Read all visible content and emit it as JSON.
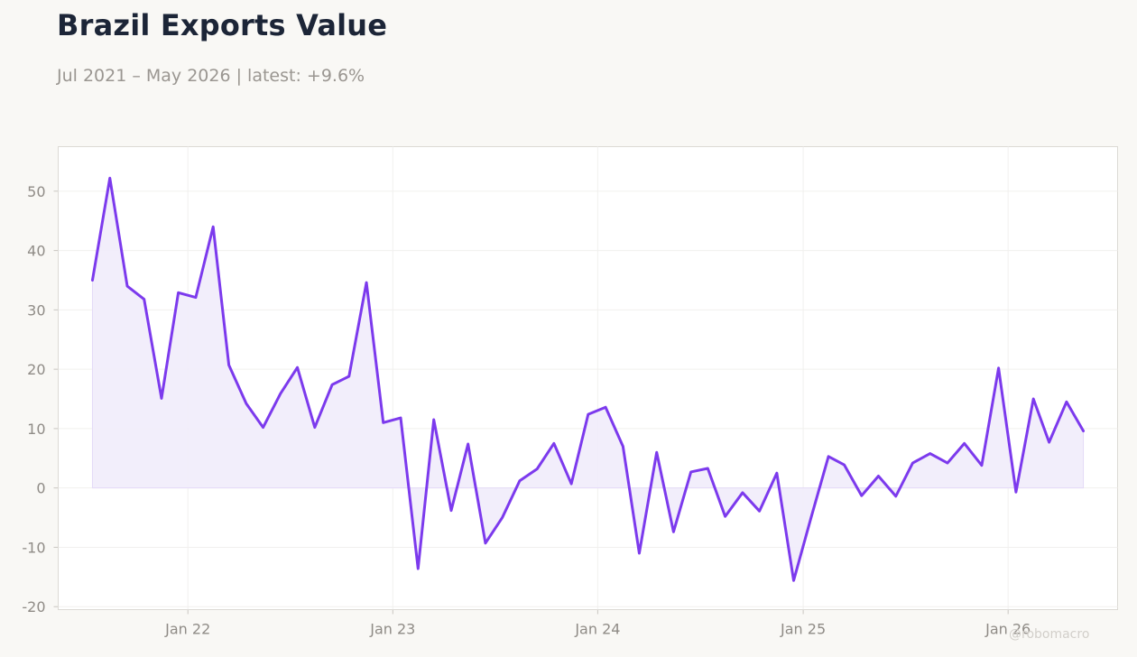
{
  "header": {
    "title": "Brazil Exports Value",
    "subtitle": "Jul 2021 – May 2026 | latest: +9.6%"
  },
  "watermark": "@robomacro",
  "colors": {
    "line": "#7c3aed",
    "fill": "#f1ecfb",
    "plot_background": "#ffffff",
    "grid": "#f1f0ee",
    "axis_border": "#dcdad5",
    "text_muted": "#8f8b86"
  },
  "chart_data": {
    "type": "area",
    "title": "Brazil Exports Value",
    "xlabel": "",
    "ylabel": "",
    "ylim": [
      -20.5,
      57.5
    ],
    "xlim": [
      "2021-05-15",
      "2026-07-15"
    ],
    "grid": true,
    "yticks": [
      -20,
      -10,
      0,
      10,
      20,
      30,
      40,
      50
    ],
    "xticks": [
      {
        "date": "2022-01-01",
        "label": "Jan 22"
      },
      {
        "date": "2023-01-01",
        "label": "Jan 23"
      },
      {
        "date": "2024-01-01",
        "label": "Jan 24"
      },
      {
        "date": "2025-01-01",
        "label": "Jan 25"
      },
      {
        "date": "2026-01-01",
        "label": "Jan 26"
      }
    ],
    "series": [
      {
        "x": [
          "2021-07",
          "2021-08",
          "2021-09",
          "2021-10",
          "2021-11",
          "2021-12",
          "2022-01",
          "2022-02",
          "2022-03",
          "2022-04",
          "2022-05",
          "2022-06",
          "2022-07",
          "2022-08",
          "2022-09",
          "2022-10",
          "2022-11",
          "2022-12",
          "2023-01",
          "2023-02",
          "2023-03",
          "2023-04",
          "2023-05",
          "2023-06",
          "2023-07",
          "2023-08",
          "2023-09",
          "2023-10",
          "2023-11",
          "2023-12",
          "2024-01",
          "2024-02",
          "2024-03",
          "2024-04",
          "2024-05",
          "2024-06",
          "2024-07",
          "2024-08",
          "2024-09",
          "2024-10",
          "2024-11",
          "2024-12",
          "2025-01",
          "2025-02",
          "2025-03",
          "2025-04",
          "2025-05",
          "2025-06",
          "2025-07",
          "2025-08",
          "2025-09",
          "2025-10",
          "2025-11",
          "2025-12",
          "2026-01",
          "2026-02",
          "2026-03",
          "2026-04",
          "2026-05"
        ],
        "values": [
          35.0,
          52.2,
          34.0,
          31.8,
          15.1,
          32.9,
          32.1,
          44.0,
          20.7,
          14.2,
          10.2,
          15.9,
          20.3,
          10.2,
          17.4,
          18.8,
          34.6,
          11.0,
          11.8,
          -13.6,
          11.5,
          -3.8,
          7.4,
          -9.3,
          -5.0,
          1.2,
          3.2,
          7.5,
          0.7,
          12.4,
          13.6,
          7.0,
          -11.0,
          6.0,
          -7.4,
          2.7,
          3.3,
          -4.8,
          -0.8,
          -3.9,
          2.5,
          -15.6,
          -5.0,
          5.3,
          3.9,
          -1.3,
          2.0,
          -1.4,
          4.2,
          5.8,
          4.2,
          7.5,
          3.8,
          20.2,
          -0.7,
          15.0,
          7.7,
          14.5,
          9.6
        ]
      }
    ]
  }
}
